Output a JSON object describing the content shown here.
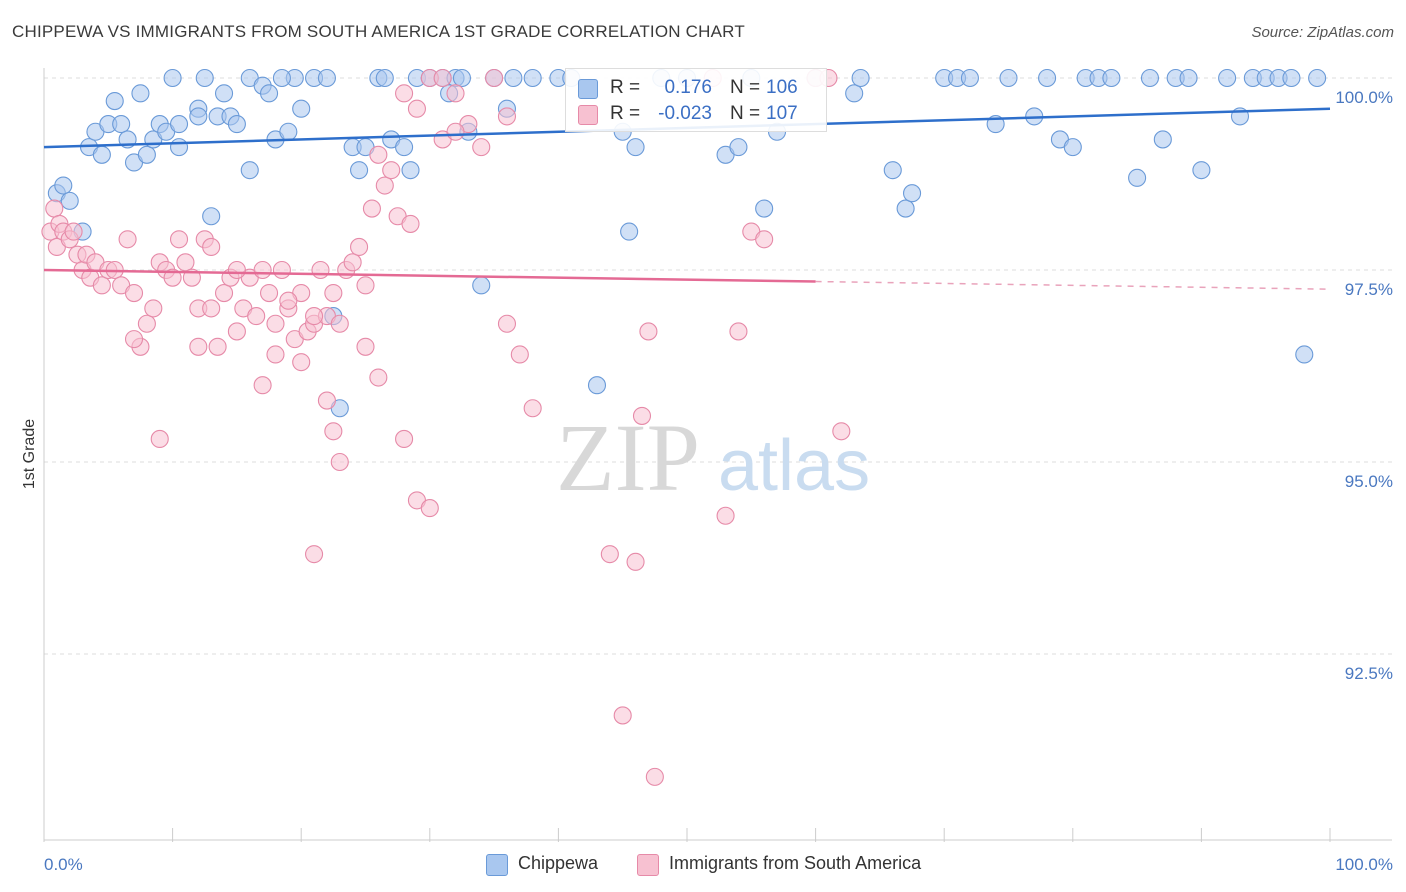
{
  "title": "CHIPPEWA VS IMMIGRANTS FROM SOUTH AMERICA 1ST GRADE CORRELATION CHART",
  "source": "Source: ZipAtlas.com",
  "watermark": {
    "zip": "ZIP",
    "atlas": "atlas"
  },
  "legend": {
    "rows": [
      {
        "r_label": "R =",
        "r_value": "0.176",
        "n_label": "N =",
        "n_value": "106",
        "color": "#a9c7ef",
        "border": "#6a9ad8"
      },
      {
        "r_label": "R =",
        "r_value": "-0.023",
        "n_label": "N =",
        "n_value": "107",
        "color": "#f7c1d1",
        "border": "#e68aa8"
      }
    ]
  },
  "bottom_legend": [
    {
      "label": "Chippewa",
      "color": "#a9c7ef",
      "border": "#6a9ad8"
    },
    {
      "label": "Immigrants from South America",
      "color": "#f7c1d1",
      "border": "#e68aa8"
    }
  ],
  "chart_data": {
    "type": "scatter",
    "title": "CHIPPEWA VS IMMIGRANTS FROM SOUTH AMERICA 1ST GRADE CORRELATION CHART",
    "xlabel": "",
    "ylabel": "1st Grade",
    "xlim": [
      0,
      100
    ],
    "ylim": [
      90.0,
      100.2
    ],
    "x_tick_labels": [
      "0.0%",
      "100.0%"
    ],
    "y_ticks": [
      100.0,
      97.5,
      95.0,
      92.5
    ],
    "y_tick_labels": [
      "100.0%",
      "97.5%",
      "95.0%",
      "92.5%"
    ],
    "grid": true,
    "series": [
      {
        "name": "Chippewa",
        "color": "#6a9ad8",
        "fill": "#a9c7ef",
        "trend": {
          "x0": 0,
          "y0": 99.1,
          "x1": 100,
          "y1": 99.6,
          "dashed_from": null
        },
        "points": [
          [
            1,
            98.5
          ],
          [
            1.5,
            98.6
          ],
          [
            2,
            98.4
          ],
          [
            3,
            98.0
          ],
          [
            3.5,
            99.1
          ],
          [
            4,
            99.3
          ],
          [
            4.5,
            99.0
          ],
          [
            5,
            99.4
          ],
          [
            5.5,
            99.7
          ],
          [
            6,
            99.4
          ],
          [
            6.5,
            99.2
          ],
          [
            7,
            98.9
          ],
          [
            7.5,
            99.8
          ],
          [
            8,
            99.0
          ],
          [
            8.5,
            99.2
          ],
          [
            9,
            99.4
          ],
          [
            9.5,
            99.3
          ],
          [
            10,
            100
          ],
          [
            10.5,
            99.4
          ],
          [
            10.5,
            99.1
          ],
          [
            12,
            99.6
          ],
          [
            12,
            99.5
          ],
          [
            12.5,
            100
          ],
          [
            13,
            98.2
          ],
          [
            13.5,
            99.5
          ],
          [
            14,
            99.8
          ],
          [
            14.5,
            99.5
          ],
          [
            15,
            99.4
          ],
          [
            16,
            98.8
          ],
          [
            16,
            100
          ],
          [
            17,
            99.9
          ],
          [
            17.5,
            99.8
          ],
          [
            18,
            99.2
          ],
          [
            19,
            99.3
          ],
          [
            19.5,
            100
          ],
          [
            20,
            99.6
          ],
          [
            21,
            100
          ],
          [
            22,
            100
          ],
          [
            22.5,
            96.9
          ],
          [
            23,
            95.7
          ],
          [
            24,
            99.1
          ],
          [
            24.5,
            98.8
          ],
          [
            25,
            99.1
          ],
          [
            26,
            100
          ],
          [
            27,
            99.2
          ],
          [
            28,
            99.1
          ],
          [
            28.5,
            98.8
          ],
          [
            29,
            100
          ],
          [
            30,
            100
          ],
          [
            31,
            100
          ],
          [
            31.5,
            99.8
          ],
          [
            32,
            100
          ],
          [
            32.5,
            100
          ],
          [
            33,
            99.3
          ],
          [
            34,
            97.3
          ],
          [
            35,
            100
          ],
          [
            36,
            99.6
          ],
          [
            36.5,
            100
          ],
          [
            38,
            100
          ],
          [
            40,
            100
          ],
          [
            43,
            96.0
          ],
          [
            45,
            99.3
          ],
          [
            45.5,
            98.0
          ],
          [
            46,
            99.1
          ],
          [
            48,
            100
          ],
          [
            50,
            100
          ],
          [
            53,
            99.0
          ],
          [
            54,
            99.1
          ],
          [
            55,
            100
          ],
          [
            56,
            98.3
          ],
          [
            57,
            99.3
          ],
          [
            60,
            100
          ],
          [
            63,
            99.8
          ],
          [
            66,
            98.8
          ],
          [
            67,
            98.3
          ],
          [
            67.5,
            98.5
          ],
          [
            70,
            100
          ],
          [
            71,
            100
          ],
          [
            74,
            99.4
          ],
          [
            75,
            100
          ],
          [
            77,
            99.5
          ],
          [
            78,
            100
          ],
          [
            79,
            99.2
          ],
          [
            80,
            99.1
          ],
          [
            81,
            100
          ],
          [
            82,
            100
          ],
          [
            83,
            100
          ],
          [
            85,
            98.7
          ],
          [
            86,
            100
          ],
          [
            87,
            99.2
          ],
          [
            88,
            100
          ],
          [
            89,
            100
          ],
          [
            90,
            98.8
          ],
          [
            92,
            100
          ],
          [
            93,
            99.5
          ],
          [
            94,
            100
          ],
          [
            95,
            100
          ],
          [
            96,
            100
          ],
          [
            97,
            100
          ],
          [
            98,
            96.4
          ],
          [
            99,
            100
          ],
          [
            72,
            100
          ],
          [
            63.5,
            100
          ],
          [
            41,
            100
          ],
          [
            26.5,
            100
          ],
          [
            18.5,
            100
          ]
        ]
      },
      {
        "name": "Immigrants from South America",
        "color": "#e68aa8",
        "fill": "#f7c1d1",
        "trend": {
          "x0": 0,
          "y0": 97.5,
          "x1": 100,
          "y1": 97.25,
          "dashed_from": 60
        },
        "points": [
          [
            0.5,
            98.0
          ],
          [
            0.8,
            98.3
          ],
          [
            1,
            97.8
          ],
          [
            1.2,
            98.1
          ],
          [
            1.5,
            98.0
          ],
          [
            2,
            97.9
          ],
          [
            2.3,
            98.0
          ],
          [
            2.6,
            97.7
          ],
          [
            3,
            97.5
          ],
          [
            3.3,
            97.7
          ],
          [
            3.6,
            97.4
          ],
          [
            4,
            97.6
          ],
          [
            4.5,
            97.3
          ],
          [
            5,
            97.5
          ],
          [
            5.5,
            97.5
          ],
          [
            6,
            97.3
          ],
          [
            6.5,
            97.9
          ],
          [
            7,
            97.2
          ],
          [
            7.5,
            96.5
          ],
          [
            8,
            96.8
          ],
          [
            8.5,
            97.0
          ],
          [
            9,
            97.6
          ],
          [
            9.5,
            97.5
          ],
          [
            10,
            97.4
          ],
          [
            10.5,
            97.9
          ],
          [
            11,
            97.6
          ],
          [
            11.5,
            97.4
          ],
          [
            12,
            97.0
          ],
          [
            12.5,
            97.9
          ],
          [
            13,
            97.8
          ],
          [
            13.5,
            96.5
          ],
          [
            14,
            97.2
          ],
          [
            14.5,
            97.4
          ],
          [
            15,
            96.7
          ],
          [
            15.5,
            97.0
          ],
          [
            16,
            97.4
          ],
          [
            16.5,
            96.9
          ],
          [
            17,
            97.5
          ],
          [
            17.5,
            97.2
          ],
          [
            18,
            96.4
          ],
          [
            18.5,
            97.5
          ],
          [
            19,
            97.0
          ],
          [
            19.5,
            96.6
          ],
          [
            20,
            97.2
          ],
          [
            20.5,
            96.7
          ],
          [
            21,
            96.8
          ],
          [
            21.5,
            97.5
          ],
          [
            22,
            96.9
          ],
          [
            22.5,
            97.2
          ],
          [
            23,
            96.8
          ],
          [
            23.5,
            97.5
          ],
          [
            24,
            97.6
          ],
          [
            24.5,
            97.8
          ],
          [
            25,
            97.3
          ],
          [
            25.5,
            98.3
          ],
          [
            26,
            99.0
          ],
          [
            26.5,
            98.6
          ],
          [
            27,
            98.8
          ],
          [
            27.5,
            98.2
          ],
          [
            28,
            99.8
          ],
          [
            28.5,
            98.1
          ],
          [
            29,
            99.6
          ],
          [
            30,
            100
          ],
          [
            31,
            99.2
          ],
          [
            32,
            99.8
          ],
          [
            33,
            99.4
          ],
          [
            34,
            99.1
          ],
          [
            35,
            100
          ],
          [
            36,
            99.5
          ],
          [
            9,
            95.3
          ],
          [
            7,
            96.6
          ],
          [
            12,
            96.5
          ],
          [
            13,
            97.0
          ],
          [
            15,
            97.5
          ],
          [
            17,
            96.0
          ],
          [
            18,
            96.8
          ],
          [
            19,
            97.1
          ],
          [
            20,
            96.3
          ],
          [
            21,
            96.9
          ],
          [
            22,
            95.8
          ],
          [
            22.5,
            95.4
          ],
          [
            23,
            95.0
          ],
          [
            25,
            96.5
          ],
          [
            26,
            96.1
          ],
          [
            28,
            95.3
          ],
          [
            29,
            94.5
          ],
          [
            30,
            94.4
          ],
          [
            31,
            100
          ],
          [
            32,
            99.3
          ],
          [
            36,
            96.8
          ],
          [
            37,
            96.4
          ],
          [
            38,
            95.7
          ],
          [
            44,
            93.8
          ],
          [
            45,
            91.7
          ],
          [
            46,
            93.7
          ],
          [
            46.5,
            95.6
          ],
          [
            47,
            96.7
          ],
          [
            52,
            100
          ],
          [
            53,
            94.3
          ],
          [
            54,
            96.7
          ],
          [
            55,
            98.0
          ],
          [
            56,
            97.9
          ],
          [
            60,
            100
          ],
          [
            61,
            100
          ],
          [
            62,
            95.4
          ],
          [
            47.5,
            90.9
          ],
          [
            21,
            93.8
          ]
        ]
      }
    ]
  }
}
